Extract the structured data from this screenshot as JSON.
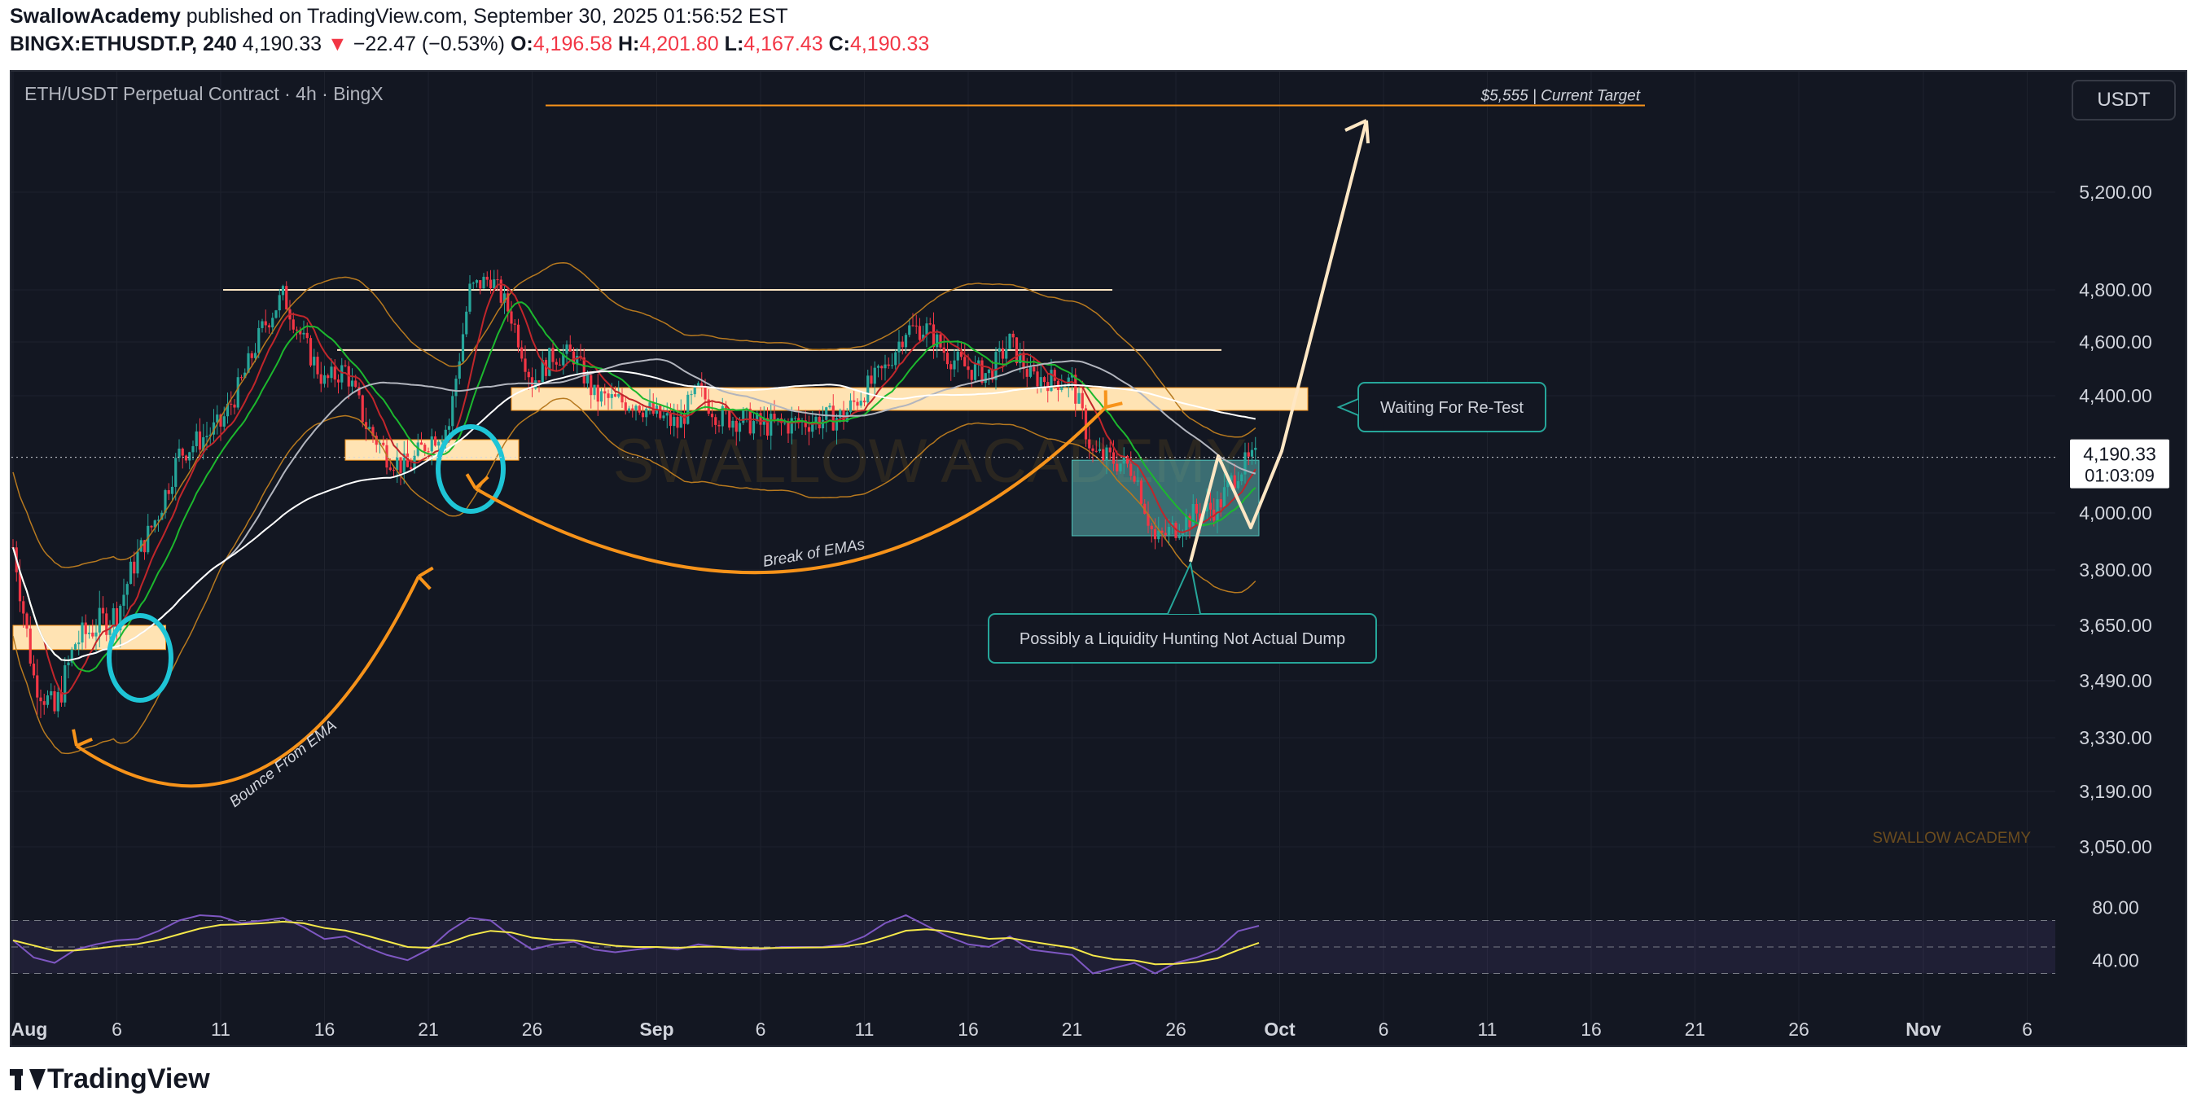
{
  "header": {
    "author": "SwallowAcademy",
    "published": "published on TradingView.com, September 30, 2025 01:56:52 EST",
    "symbol": "BINGX:ETHUSDT.P, 240",
    "last": "4,190.33",
    "change_arrow": "▼",
    "change": "−22.47 (−0.53%)",
    "o_label": "O:",
    "o": "4,196.58",
    "h_label": "H:",
    "h": "4,201.80",
    "l_label": "L:",
    "l": "4,167.43",
    "c_label": "C:",
    "c": "4,190.33"
  },
  "chart_title": "ETH/USDT Perpetual Contract · 4h · BingX",
  "currency_button": "USDT",
  "footer_brand": "TradingView",
  "watermark": "SWALLOW ACADEMY",
  "watermark_small": "SWALLOW ACADEMY",
  "price_tag": {
    "price": "4,190.33",
    "countdown": "01:03:09"
  },
  "colors": {
    "background": "#131722",
    "up": "#26a69a",
    "down": "#f23645",
    "zone": "#ffe3b3",
    "accent_orange": "#f7931a",
    "cyan_circle": "#1ec5d6",
    "rsi_line": "#7e57c2",
    "rsi_ma": "#f5e84a"
  },
  "annotations": {
    "target": "$5,555 | Current Target",
    "retest": "Waiting For Re-Test",
    "liquidity": "Possibly a Liquidity Hunting Not Actual Dump",
    "break_emas": "Break of EMAs",
    "bounce_ema": "Bounce From EMA"
  },
  "chart_data": {
    "type": "candlestick",
    "title": "ETH/USDT Perpetual Contract · 4h · BingX",
    "timeframe": "4h",
    "y_axis_ticks": [
      "5,200.00",
      "4,800.00",
      "4,600.00",
      "4,400.00",
      "4,000.00",
      "3,800.00",
      "3,650.00",
      "3,490.00",
      "3,330.00",
      "3,190.00",
      "3,050.00"
    ],
    "y_tick_values": [
      5200,
      4800,
      4600,
      4400,
      4000,
      3800,
      3650,
      3490,
      3330,
      3190,
      3050
    ],
    "x_axis_ticks": [
      "Aug",
      "6",
      "11",
      "16",
      "21",
      "26",
      "Sep",
      "6",
      "11",
      "16",
      "21",
      "26",
      "Oct",
      "6",
      "11",
      "16",
      "21",
      "26",
      "Nov",
      "6"
    ],
    "x_tick_dates": [
      "2025-08-01",
      "2025-08-06",
      "2025-08-11",
      "2025-08-16",
      "2025-08-21",
      "2025-08-26",
      "2025-09-01",
      "2025-09-06",
      "2025-09-11",
      "2025-09-16",
      "2025-09-21",
      "2025-09-26",
      "2025-10-01",
      "2025-10-06",
      "2025-10-11",
      "2025-10-16",
      "2025-10-21",
      "2025-10-26",
      "2025-11-01",
      "2025-11-06"
    ],
    "bold_ticks": [
      "Aug",
      "Sep",
      "Oct",
      "Nov"
    ],
    "price_path": [
      [
        "2025-08-01",
        3880
      ],
      [
        "2025-08-02",
        3500
      ],
      [
        "2025-08-03",
        3400
      ],
      [
        "2025-08-04",
        3600
      ],
      [
        "2025-08-05",
        3650
      ],
      [
        "2025-08-06",
        3680
      ],
      [
        "2025-08-07",
        3850
      ],
      [
        "2025-08-08",
        4000
      ],
      [
        "2025-08-09",
        4200
      ],
      [
        "2025-08-10",
        4250
      ],
      [
        "2025-08-11",
        4300
      ],
      [
        "2025-08-12",
        4450
      ],
      [
        "2025-08-13",
        4650
      ],
      [
        "2025-08-14",
        4780
      ],
      [
        "2025-08-15",
        4600
      ],
      [
        "2025-08-16",
        4450
      ],
      [
        "2025-08-17",
        4500
      ],
      [
        "2025-08-18",
        4300
      ],
      [
        "2025-08-19",
        4200
      ],
      [
        "2025-08-20",
        4150
      ],
      [
        "2025-08-21",
        4250
      ],
      [
        "2025-08-22",
        4300
      ],
      [
        "2025-08-23",
        4800
      ],
      [
        "2025-08-24",
        4850
      ],
      [
        "2025-08-25",
        4700
      ],
      [
        "2025-08-26",
        4450
      ],
      [
        "2025-08-27",
        4550
      ],
      [
        "2025-08-28",
        4550
      ],
      [
        "2025-08-29",
        4400
      ],
      [
        "2025-08-30",
        4380
      ],
      [
        "2025-08-31",
        4380
      ],
      [
        "2025-09-01",
        4330
      ],
      [
        "2025-09-02",
        4300
      ],
      [
        "2025-09-03",
        4420
      ],
      [
        "2025-09-04",
        4330
      ],
      [
        "2025-09-05",
        4320
      ],
      [
        "2025-09-06",
        4300
      ],
      [
        "2025-09-07",
        4300
      ],
      [
        "2025-09-08",
        4310
      ],
      [
        "2025-09-09",
        4320
      ],
      [
        "2025-09-10",
        4330
      ],
      [
        "2025-09-11",
        4420
      ],
      [
        "2025-09-12",
        4500
      ],
      [
        "2025-09-13",
        4650
      ],
      [
        "2025-09-14",
        4650
      ],
      [
        "2025-09-15",
        4550
      ],
      [
        "2025-09-16",
        4500
      ],
      [
        "2025-09-17",
        4480
      ],
      [
        "2025-09-18",
        4600
      ],
      [
        "2025-09-19",
        4470
      ],
      [
        "2025-09-20",
        4460
      ],
      [
        "2025-09-21",
        4450
      ],
      [
        "2025-09-22",
        4200
      ],
      [
        "2025-09-23",
        4180
      ],
      [
        "2025-09-24",
        4150
      ],
      [
        "2025-09-25",
        3900
      ],
      [
        "2025-09-26",
        3950
      ],
      [
        "2025-09-27",
        4000
      ],
      [
        "2025-09-28",
        4020
      ],
      [
        "2025-09-29",
        4150
      ],
      [
        "2025-09-30",
        4190
      ]
    ],
    "horizontal_levels": [
      {
        "price": 5555,
        "label": "$5,555 | Current Target"
      },
      {
        "price": 4800
      },
      {
        "price": 4570
      }
    ],
    "zones": [
      {
        "from": 4350,
        "to": 4430,
        "start": "2025-08-25",
        "end": "2025-09-30"
      },
      {
        "from": 4180,
        "to": 4250,
        "start": "2025-08-17",
        "end": "2025-08-23"
      },
      {
        "from": 3580,
        "to": 3650,
        "start": "2025-08-01",
        "end": "2025-08-06"
      },
      {
        "from": 3920,
        "to": 4180,
        "start": "2025-09-21",
        "end": "2025-09-30"
      }
    ],
    "rsi": {
      "y_ticks": [
        "80.00",
        "40.00"
      ],
      "y_tick_values": [
        80,
        40
      ],
      "band": [
        30,
        70
      ],
      "values": [
        55,
        42,
        38,
        48,
        52,
        55,
        56,
        62,
        70,
        74,
        73,
        68,
        70,
        72,
        65,
        56,
        58,
        50,
        44,
        40,
        48,
        62,
        72,
        70,
        58,
        48,
        52,
        54,
        48,
        46,
        48,
        50,
        48,
        52,
        50,
        48,
        48,
        50,
        50,
        50,
        52,
        58,
        68,
        74,
        66,
        58,
        52,
        50,
        58,
        48,
        46,
        44,
        30,
        34,
        38,
        30,
        38,
        42,
        48,
        62,
        66
      ]
    },
    "grid": true,
    "legend": "none"
  }
}
